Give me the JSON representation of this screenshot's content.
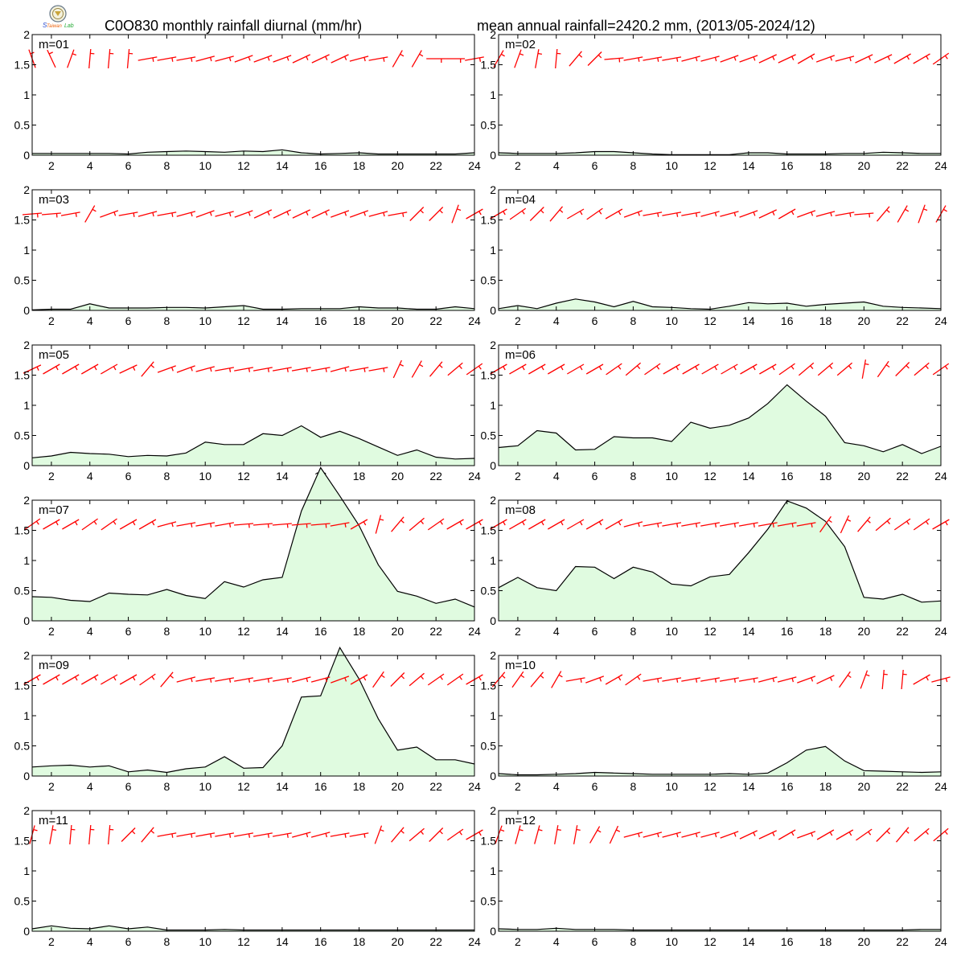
{
  "header": {
    "title_left": "C0O830 monthly rainfall diurnal (mm/hr)",
    "title_right": "mean annual rainfall=2420.2 mm, (2013/05-2024/12)",
    "logo_icon": "weather-lab-logo-icon"
  },
  "colors": {
    "fill": "#e0fbe0",
    "rain_line": "#000000",
    "wind_barb": "#ff0000",
    "frame": "#000000"
  },
  "chart_data": [
    {
      "type": "area",
      "label": "m=01",
      "x": [
        1,
        2,
        3,
        4,
        5,
        6,
        7,
        8,
        9,
        10,
        11,
        12,
        13,
        14,
        15,
        16,
        17,
        18,
        19,
        20,
        21,
        22,
        23,
        24
      ],
      "ylim": [
        0,
        2
      ],
      "xticks": [
        2,
        4,
        6,
        8,
        10,
        12,
        14,
        16,
        18,
        20,
        22,
        24
      ],
      "yticks": [
        0,
        0.5,
        1,
        1.5,
        2
      ],
      "values": [
        0.03,
        0.03,
        0.03,
        0.03,
        0.03,
        0.02,
        0.05,
        0.06,
        0.07,
        0.06,
        0.05,
        0.07,
        0.06,
        0.09,
        0.04,
        0.02,
        0.03,
        0.04,
        0.02,
        0.02,
        0.02,
        0.02,
        0.02,
        0.04
      ]
    },
    {
      "type": "area",
      "label": "m=02",
      "x": [
        1,
        2,
        3,
        4,
        5,
        6,
        7,
        8,
        9,
        10,
        11,
        12,
        13,
        14,
        15,
        16,
        17,
        18,
        19,
        20,
        21,
        22,
        23,
        24
      ],
      "ylim": [
        0,
        2
      ],
      "xticks": [
        2,
        4,
        6,
        8,
        10,
        12,
        14,
        16,
        18,
        20,
        22,
        24
      ],
      "yticks": [
        0,
        0.5,
        1,
        1.5,
        2
      ],
      "values": [
        0.04,
        0.03,
        0.03,
        0.03,
        0.04,
        0.06,
        0.06,
        0.04,
        0.02,
        0.01,
        0.01,
        0.01,
        0.01,
        0.04,
        0.04,
        0.02,
        0.02,
        0.02,
        0.03,
        0.03,
        0.05,
        0.04,
        0.03,
        0.03
      ]
    },
    {
      "type": "area",
      "label": "m=03",
      "x": [
        1,
        2,
        3,
        4,
        5,
        6,
        7,
        8,
        9,
        10,
        11,
        12,
        13,
        14,
        15,
        16,
        17,
        18,
        19,
        20,
        21,
        22,
        23,
        24
      ],
      "ylim": [
        0,
        2
      ],
      "xticks": [
        2,
        4,
        6,
        8,
        10,
        12,
        14,
        16,
        18,
        20,
        22,
        24
      ],
      "yticks": [
        0,
        0.5,
        1,
        1.5,
        2
      ],
      "values": [
        0.01,
        0.02,
        0.02,
        0.11,
        0.04,
        0.04,
        0.04,
        0.05,
        0.05,
        0.04,
        0.06,
        0.08,
        0.02,
        0.02,
        0.03,
        0.03,
        0.03,
        0.06,
        0.04,
        0.04,
        0.02,
        0.02,
        0.06,
        0.03
      ]
    },
    {
      "type": "area",
      "label": "m=04",
      "x": [
        1,
        2,
        3,
        4,
        5,
        6,
        7,
        8,
        9,
        10,
        11,
        12,
        13,
        14,
        15,
        16,
        17,
        18,
        19,
        20,
        21,
        22,
        23,
        24
      ],
      "ylim": [
        0,
        2
      ],
      "xticks": [
        2,
        4,
        6,
        8,
        10,
        12,
        14,
        16,
        18,
        20,
        22,
        24
      ],
      "yticks": [
        0,
        0.5,
        1,
        1.5,
        2
      ],
      "values": [
        0.03,
        0.08,
        0.03,
        0.12,
        0.19,
        0.14,
        0.06,
        0.15,
        0.06,
        0.05,
        0.03,
        0.02,
        0.07,
        0.13,
        0.11,
        0.12,
        0.07,
        0.1,
        0.12,
        0.14,
        0.07,
        0.05,
        0.04,
        0.03
      ]
    },
    {
      "type": "area",
      "label": "m=05",
      "x": [
        1,
        2,
        3,
        4,
        5,
        6,
        7,
        8,
        9,
        10,
        11,
        12,
        13,
        14,
        15,
        16,
        17,
        18,
        19,
        20,
        21,
        22,
        23,
        24
      ],
      "ylim": [
        0,
        2
      ],
      "xticks": [
        2,
        4,
        6,
        8,
        10,
        12,
        14,
        16,
        18,
        20,
        22,
        24
      ],
      "yticks": [
        0,
        0.5,
        1,
        1.5,
        2
      ],
      "values": [
        0.13,
        0.16,
        0.22,
        0.2,
        0.19,
        0.15,
        0.17,
        0.16,
        0.21,
        0.39,
        0.35,
        0.35,
        0.53,
        0.5,
        0.66,
        0.47,
        0.57,
        0.45,
        0.31,
        0.17,
        0.26,
        0.14,
        0.11,
        0.12
      ]
    },
    {
      "type": "area",
      "label": "m=06",
      "x": [
        1,
        2,
        3,
        4,
        5,
        6,
        7,
        8,
        9,
        10,
        11,
        12,
        13,
        14,
        15,
        16,
        17,
        18,
        19,
        20,
        21,
        22,
        23,
        24
      ],
      "ylim": [
        0,
        2
      ],
      "xticks": [
        2,
        4,
        6,
        8,
        10,
        12,
        14,
        16,
        18,
        20,
        22,
        24
      ],
      "yticks": [
        0,
        0.5,
        1,
        1.5,
        2
      ],
      "values": [
        0.3,
        0.33,
        0.58,
        0.54,
        0.26,
        0.27,
        0.48,
        0.46,
        0.46,
        0.4,
        0.72,
        0.62,
        0.67,
        0.79,
        1.03,
        1.34,
        1.07,
        0.82,
        0.38,
        0.33,
        0.23,
        0.35,
        0.2,
        0.32
      ]
    },
    {
      "type": "area",
      "label": "m=07",
      "x": [
        1,
        2,
        3,
        4,
        5,
        6,
        7,
        8,
        9,
        10,
        11,
        12,
        13,
        14,
        15,
        16,
        17,
        18,
        19,
        20,
        21,
        22,
        23,
        24
      ],
      "ylim": [
        0,
        2
      ],
      "xticks": [
        2,
        4,
        6,
        8,
        10,
        12,
        14,
        16,
        18,
        20,
        22,
        24
      ],
      "yticks": [
        0,
        0.5,
        1,
        1.5,
        2
      ],
      "values": [
        0.4,
        0.39,
        0.34,
        0.32,
        0.46,
        0.44,
        0.43,
        0.52,
        0.42,
        0.37,
        0.65,
        0.56,
        0.68,
        0.72,
        1.82,
        2.54,
        2.07,
        1.58,
        0.93,
        0.49,
        0.41,
        0.29,
        0.36,
        0.23
      ]
    },
    {
      "type": "area",
      "label": "m=08",
      "x": [
        1,
        2,
        3,
        4,
        5,
        6,
        7,
        8,
        9,
        10,
        11,
        12,
        13,
        14,
        15,
        16,
        17,
        18,
        19,
        20,
        21,
        22,
        23,
        24
      ],
      "ylim": [
        0,
        2
      ],
      "xticks": [
        2,
        4,
        6,
        8,
        10,
        12,
        14,
        16,
        18,
        20,
        22,
        24
      ],
      "yticks": [
        0,
        0.5,
        1,
        1.5,
        2
      ],
      "values": [
        0.55,
        0.72,
        0.55,
        0.5,
        0.9,
        0.89,
        0.7,
        0.89,
        0.81,
        0.61,
        0.58,
        0.73,
        0.77,
        1.13,
        1.52,
        1.99,
        1.87,
        1.65,
        1.23,
        0.39,
        0.36,
        0.44,
        0.31,
        0.33
      ]
    },
    {
      "type": "area",
      "label": "m=09",
      "x": [
        1,
        2,
        3,
        4,
        5,
        6,
        7,
        8,
        9,
        10,
        11,
        12,
        13,
        14,
        15,
        16,
        17,
        18,
        19,
        20,
        21,
        22,
        23,
        24
      ],
      "ylim": [
        0,
        2
      ],
      "xticks": [
        2,
        4,
        6,
        8,
        10,
        12,
        14,
        16,
        18,
        20,
        22,
        24
      ],
      "yticks": [
        0,
        0.5,
        1,
        1.5,
        2
      ],
      "values": [
        0.15,
        0.17,
        0.18,
        0.15,
        0.17,
        0.07,
        0.1,
        0.06,
        0.12,
        0.15,
        0.32,
        0.13,
        0.14,
        0.5,
        1.31,
        1.33,
        2.13,
        1.61,
        0.95,
        0.43,
        0.48,
        0.27,
        0.27,
        0.2
      ]
    },
    {
      "type": "area",
      "label": "m=10",
      "x": [
        1,
        2,
        3,
        4,
        5,
        6,
        7,
        8,
        9,
        10,
        11,
        12,
        13,
        14,
        15,
        16,
        17,
        18,
        19,
        20,
        21,
        22,
        23,
        24
      ],
      "ylim": [
        0,
        2
      ],
      "xticks": [
        2,
        4,
        6,
        8,
        10,
        12,
        14,
        16,
        18,
        20,
        22,
        24
      ],
      "yticks": [
        0,
        0.5,
        1,
        1.5,
        2
      ],
      "values": [
        0.04,
        0.02,
        0.02,
        0.03,
        0.04,
        0.06,
        0.05,
        0.04,
        0.03,
        0.03,
        0.03,
        0.03,
        0.04,
        0.03,
        0.05,
        0.22,
        0.43,
        0.49,
        0.25,
        0.09,
        0.08,
        0.07,
        0.06,
        0.07
      ]
    },
    {
      "type": "area",
      "label": "m=11",
      "x": [
        1,
        2,
        3,
        4,
        5,
        6,
        7,
        8,
        9,
        10,
        11,
        12,
        13,
        14,
        15,
        16,
        17,
        18,
        19,
        20,
        21,
        22,
        23,
        24
      ],
      "ylim": [
        0,
        2
      ],
      "xticks": [
        2,
        4,
        6,
        8,
        10,
        12,
        14,
        16,
        18,
        20,
        22,
        24
      ],
      "yticks": [
        0,
        0.5,
        1,
        1.5,
        2
      ],
      "values": [
        0.04,
        0.09,
        0.05,
        0.04,
        0.09,
        0.04,
        0.07,
        0.02,
        0.02,
        0.02,
        0.03,
        0.02,
        0.02,
        0.02,
        0.02,
        0.02,
        0.02,
        0.02,
        0.02,
        0.02,
        0.02,
        0.02,
        0.02,
        0.02
      ]
    },
    {
      "type": "area",
      "label": "m=12",
      "x": [
        1,
        2,
        3,
        4,
        5,
        6,
        7,
        8,
        9,
        10,
        11,
        12,
        13,
        14,
        15,
        16,
        17,
        18,
        19,
        20,
        21,
        22,
        23,
        24
      ],
      "ylim": [
        0,
        2
      ],
      "xticks": [
        2,
        4,
        6,
        8,
        10,
        12,
        14,
        16,
        18,
        20,
        22,
        24
      ],
      "yticks": [
        0,
        0.5,
        1,
        1.5,
        2
      ],
      "values": [
        0.04,
        0.03,
        0.03,
        0.05,
        0.03,
        0.03,
        0.03,
        0.02,
        0.02,
        0.02,
        0.02,
        0.02,
        0.02,
        0.02,
        0.02,
        0.02,
        0.02,
        0.02,
        0.02,
        0.02,
        0.02,
        0.02,
        0.03,
        0.03
      ]
    }
  ],
  "wind_barbs": [
    {
      "dir": [
        340,
        335,
        20,
        5,
        5,
        5,
        80,
        80,
        80,
        75,
        75,
        70,
        70,
        70,
        65,
        65,
        65,
        75,
        80,
        30,
        30,
        90,
        90,
        80
      ]
    },
    {
      "dir": [
        30,
        20,
        10,
        5,
        40,
        45,
        85,
        80,
        80,
        80,
        75,
        75,
        70,
        70,
        65,
        65,
        60,
        70,
        75,
        65,
        65,
        60,
        60,
        55
      ]
    },
    {
      "dir": [
        85,
        85,
        80,
        30,
        70,
        80,
        75,
        80,
        75,
        70,
        75,
        70,
        65,
        65,
        65,
        65,
        70,
        70,
        75,
        80,
        45,
        45,
        20,
        60
      ]
    },
    {
      "dir": [
        60,
        55,
        45,
        40,
        60,
        55,
        60,
        70,
        80,
        80,
        80,
        75,
        75,
        70,
        65,
        60,
        70,
        75,
        80,
        85,
        40,
        30,
        20,
        30
      ]
    },
    {
      "dir": [
        65,
        60,
        60,
        60,
        60,
        65,
        40,
        70,
        70,
        75,
        80,
        80,
        80,
        80,
        80,
        80,
        75,
        80,
        80,
        25,
        30,
        40,
        50,
        55
      ]
    },
    {
      "dir": [
        60,
        60,
        60,
        60,
        60,
        60,
        55,
        50,
        55,
        60,
        60,
        60,
        60,
        60,
        60,
        55,
        50,
        50,
        50,
        10,
        35,
        45,
        50,
        55
      ]
    },
    {
      "dir": [
        55,
        60,
        60,
        55,
        55,
        60,
        60,
        75,
        80,
        80,
        80,
        85,
        85,
        85,
        85,
        85,
        80,
        60,
        15,
        40,
        50,
        55,
        60,
        60
      ]
    },
    {
      "dir": [
        60,
        60,
        60,
        60,
        60,
        60,
        60,
        75,
        80,
        80,
        80,
        80,
        80,
        80,
        80,
        80,
        80,
        35,
        25,
        40,
        50,
        55,
        55,
        60
      ]
    },
    {
      "dir": [
        60,
        60,
        60,
        60,
        60,
        60,
        55,
        40,
        75,
        80,
        80,
        80,
        80,
        80,
        75,
        75,
        70,
        60,
        35,
        45,
        50,
        55,
        55,
        60
      ]
    },
    {
      "dir": [
        40,
        35,
        40,
        30,
        80,
        70,
        60,
        55,
        80,
        80,
        80,
        80,
        80,
        80,
        75,
        75,
        70,
        65,
        35,
        20,
        5,
        5,
        60,
        75
      ]
    },
    {
      "dir": [
        15,
        10,
        5,
        5,
        5,
        45,
        40,
        80,
        80,
        80,
        80,
        80,
        80,
        80,
        75,
        75,
        80,
        80,
        20,
        40,
        50,
        45,
        55,
        60
      ]
    },
    {
      "dir": [
        20,
        15,
        15,
        10,
        10,
        30,
        25,
        75,
        75,
        75,
        75,
        75,
        70,
        65,
        65,
        60,
        70,
        60,
        60,
        55,
        45,
        40,
        50,
        50
      ]
    }
  ]
}
